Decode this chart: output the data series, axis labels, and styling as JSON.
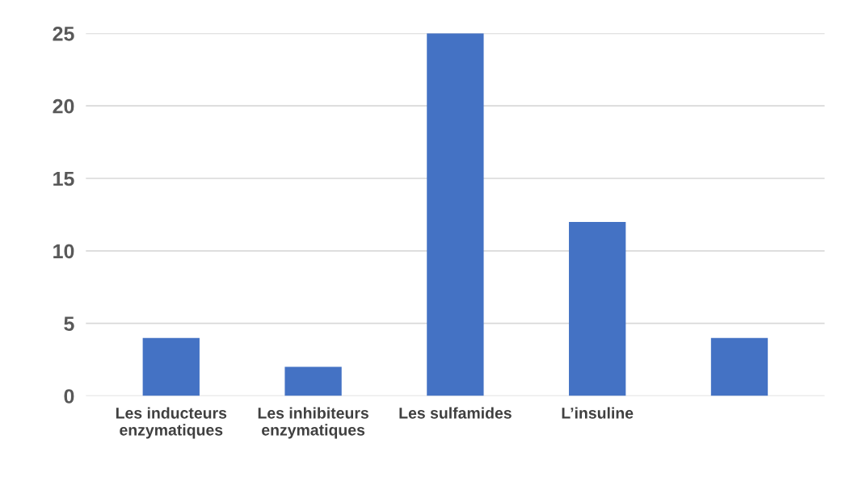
{
  "chart_data": {
    "type": "bar",
    "categories": [
      "Les inducteurs\nenzymatiques",
      "Les inhibiteurs\nenzymatiques",
      "Les sulfamides",
      "L’insuline",
      null
    ],
    "values": [
      4,
      2,
      25,
      12,
      4
    ],
    "color": "#4472c4",
    "ylim": [
      0,
      25
    ],
    "yticks": [
      0,
      5,
      10,
      15,
      20,
      25
    ],
    "grid": "y"
  }
}
